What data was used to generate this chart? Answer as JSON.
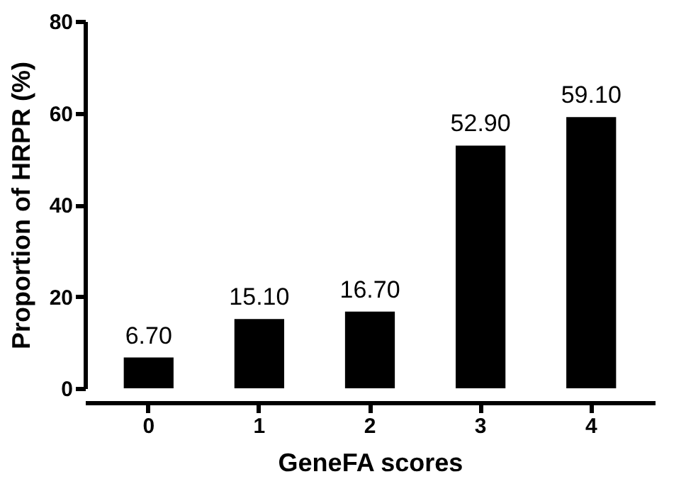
{
  "chart_data": {
    "type": "bar",
    "xlabel": "GeneFA scores",
    "ylabel": "Proportion of HRPR (%)",
    "categories": [
      "0",
      "1",
      "2",
      "3",
      "4"
    ],
    "values": [
      6.7,
      15.1,
      16.7,
      52.9,
      59.1
    ],
    "value_labels": [
      "6.70",
      "15.10",
      "16.70",
      "52.90",
      "59.10"
    ],
    "color": "#000000",
    "ylim": [
      0,
      80
    ],
    "yticks": [
      0,
      20,
      40,
      60,
      80
    ],
    "grid": false
  }
}
